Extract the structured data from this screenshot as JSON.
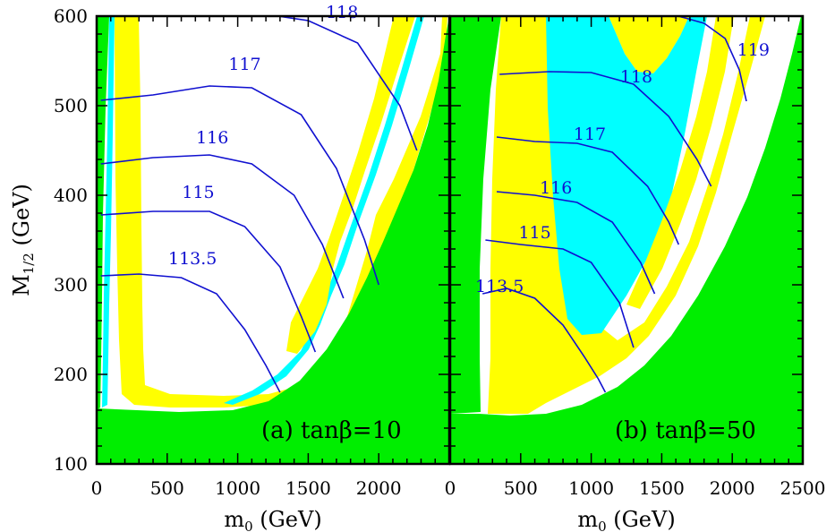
{
  "colors": {
    "allowed": "#ffffff",
    "excluded": "#00ee00",
    "cosmology_band": "#ffff00",
    "relic_band": "#00ffff",
    "contours": "#1010d0",
    "axes": "#000000"
  },
  "chart_data": [
    {
      "type": "contour",
      "panel_label": "(a) tanβ=10",
      "xlabel": "m0 (GeV)",
      "ylabel": "M1/2 (GeV)",
      "xlim": [
        0,
        2500
      ],
      "ylim": [
        100,
        600
      ],
      "xticks": [
        0,
        500,
        1000,
        1500,
        2000
      ],
      "yticks": [
        100,
        200,
        300,
        400,
        500,
        600
      ],
      "contours": [
        {
          "label": "113.5",
          "label_pos": [
            680,
            323
          ],
          "points": [
            [
              30,
              310
            ],
            [
              300,
              312
            ],
            [
              600,
              308
            ],
            [
              850,
              290
            ],
            [
              1050,
              250
            ],
            [
              1200,
              210
            ],
            [
              1300,
              180
            ]
          ]
        },
        {
          "label": "115",
          "label_pos": [
            720,
            397
          ],
          "points": [
            [
              30,
              378
            ],
            [
              400,
              382
            ],
            [
              800,
              382
            ],
            [
              1050,
              365
            ],
            [
              1300,
              320
            ],
            [
              1450,
              265
            ],
            [
              1550,
              225
            ]
          ]
        },
        {
          "label": "116",
          "label_pos": [
            820,
            458
          ],
          "points": [
            [
              30,
              435
            ],
            [
              400,
              442
            ],
            [
              800,
              445
            ],
            [
              1100,
              435
            ],
            [
              1400,
              400
            ],
            [
              1600,
              345
            ],
            [
              1750,
              285
            ]
          ]
        },
        {
          "label": "117",
          "label_pos": [
            1050,
            540
          ],
          "points": [
            [
              30,
              506
            ],
            [
              400,
              512
            ],
            [
              800,
              522
            ],
            [
              1100,
              520
            ],
            [
              1450,
              490
            ],
            [
              1700,
              430
            ],
            [
              1900,
              350
            ],
            [
              2000,
              300
            ]
          ]
        },
        {
          "label": "118",
          "label_pos": [
            1740,
            598
          ],
          "points": [
            [
              1200,
              602
            ],
            [
              1500,
              595
            ],
            [
              1850,
              570
            ],
            [
              2150,
              500
            ],
            [
              2270,
              450
            ]
          ]
        }
      ]
    },
    {
      "type": "contour",
      "panel_label": "(b) tanβ=50",
      "xlabel": "m0 (GeV)",
      "ylabel": "",
      "xlim": [
        0,
        2500
      ],
      "ylim": [
        100,
        600
      ],
      "xticks": [
        0,
        500,
        1000,
        1500,
        2000,
        2500
      ],
      "yticks": [
        100,
        200,
        300,
        400,
        500,
        600
      ],
      "contours": [
        {
          "label": "113.5",
          "label_pos": [
            350,
            292
          ],
          "points": [
            [
              230,
              290
            ],
            [
              400,
              296
            ],
            [
              600,
              285
            ],
            [
              800,
              255
            ],
            [
              950,
              220
            ],
            [
              1050,
              195
            ],
            [
              1100,
              180
            ]
          ]
        },
        {
          "label": "115",
          "label_pos": [
            600,
            352
          ],
          "points": [
            [
              250,
              350
            ],
            [
              500,
              345
            ],
            [
              800,
              340
            ],
            [
              1000,
              325
            ],
            [
              1200,
              280
            ],
            [
              1300,
              230
            ]
          ]
        },
        {
          "label": "116",
          "label_pos": [
            750,
            402
          ],
          "points": [
            [
              330,
              404
            ],
            [
              600,
              400
            ],
            [
              900,
              392
            ],
            [
              1150,
              370
            ],
            [
              1350,
              325
            ],
            [
              1450,
              290
            ]
          ]
        },
        {
          "label": "117",
          "label_pos": [
            990,
            462
          ],
          "points": [
            [
              330,
              465
            ],
            [
              600,
              460
            ],
            [
              900,
              458
            ],
            [
              1150,
              448
            ],
            [
              1400,
              410
            ],
            [
              1550,
              370
            ],
            [
              1620,
              345
            ]
          ]
        },
        {
          "label": "118",
          "label_pos": [
            1320,
            526
          ],
          "points": [
            [
              350,
              535
            ],
            [
              700,
              538
            ],
            [
              1000,
              537
            ],
            [
              1300,
              524
            ],
            [
              1550,
              488
            ],
            [
              1750,
              440
            ],
            [
              1850,
              410
            ]
          ]
        },
        {
          "label": "119",
          "label_pos": [
            2150,
            556
          ],
          "points": [
            [
              1550,
              603
            ],
            [
              1800,
              592
            ],
            [
              1950,
              575
            ],
            [
              2050,
              540
            ],
            [
              2100,
              505
            ]
          ]
        }
      ]
    }
  ]
}
